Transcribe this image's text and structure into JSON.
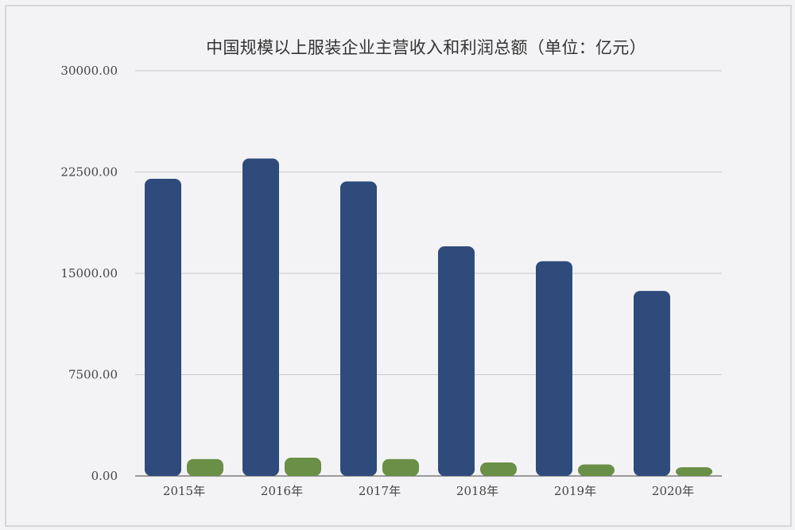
{
  "chart_data": {
    "type": "bar",
    "title": "中国规模以上服装企业主营收入和利润总额（单位：亿元）",
    "xlabel": "",
    "ylabel": "",
    "categories": [
      "2015年",
      "2016年",
      "2017年",
      "2018年",
      "2019年",
      "2020年"
    ],
    "series": [
      {
        "values": [
          22000,
          23500,
          21800,
          17000,
          15900,
          13700
        ],
        "color": "#2f4b7c"
      },
      {
        "values": [
          1250,
          1350,
          1250,
          1000,
          850,
          650
        ],
        "color": "#6a8f46"
      }
    ],
    "ylim": [
      0,
      30000
    ],
    "y_ticks": [
      "0.00",
      "7500.00",
      "15000.00",
      "22500.00",
      "30000.00"
    ],
    "grid": true,
    "legend": "none"
  }
}
